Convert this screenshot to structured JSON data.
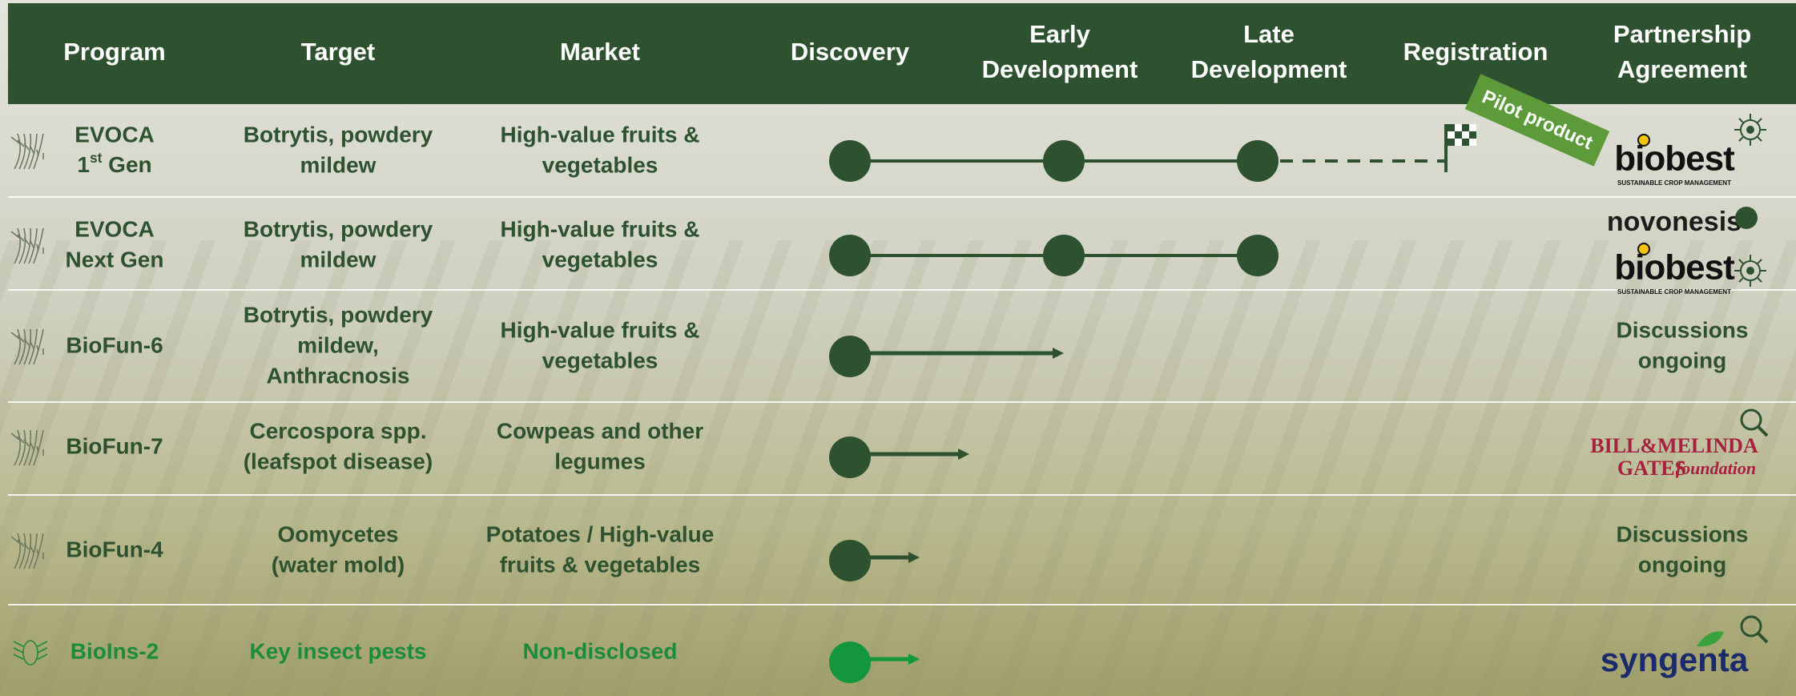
{
  "header": {
    "columns": [
      [
        "Program"
      ],
      [
        "Target"
      ],
      [
        "Market"
      ],
      [
        "Discovery"
      ],
      [
        "Early",
        "Development"
      ],
      [
        "Late",
        "Development"
      ],
      [
        "Registration"
      ],
      [
        "Partnership",
        "Agreement"
      ]
    ]
  },
  "pilot_tag": "Pilot product",
  "rows": [
    {
      "program": [
        "EVOCA",
        {
          "base": "1",
          "sup": "st",
          "rest": " Gen"
        }
      ],
      "target": [
        "Botrytis, powdery",
        "mildew"
      ],
      "market": [
        "High-value fruits &",
        "vegetables"
      ],
      "partnership": {
        "logos": [
          {
            "kind": "biobest",
            "texts": [
              "biobest",
              "SUSTAINABLE CROP MANAGEMENT"
            ]
          }
        ]
      }
    },
    {
      "program": [
        "EVOCA",
        "Next Gen"
      ],
      "target": [
        "Botrytis, powdery",
        "mildew"
      ],
      "market": [
        "High-value fruits &",
        "vegetables"
      ],
      "partnership": {
        "logos": [
          {
            "kind": "novonesis",
            "texts": [
              "novonesis"
            ]
          },
          {
            "kind": "biobest",
            "texts": [
              "biobest",
              "SUSTAINABLE CROP MANAGEMENT"
            ]
          }
        ]
      }
    },
    {
      "program": [
        "BioFun-6"
      ],
      "target": [
        "Botrytis, powdery",
        "mildew,",
        "Anthracnosis"
      ],
      "market": [
        "High-value fruits &",
        "vegetables"
      ],
      "partnership": {
        "lines": [
          "Discussions",
          "ongoing"
        ]
      }
    },
    {
      "program": [
        "BioFun-7"
      ],
      "target": [
        "Cercospora spp.",
        "(leafspot disease)"
      ],
      "market": [
        "Cowpeas and other",
        "legumes"
      ],
      "partnership": {
        "logos": [
          {
            "kind": "gates",
            "texts": [
              "BILL&MELINDA",
              "GATES",
              "foundation"
            ]
          }
        ]
      }
    },
    {
      "program": [
        "BioFun-4"
      ],
      "target": [
        "Oomycetes",
        "(water mold)"
      ],
      "market": [
        "Potatoes / High-value",
        "fruits & vegetables"
      ],
      "partnership": {
        "lines": [
          "Discussions",
          "ongoing"
        ]
      }
    },
    {
      "program": [
        "BioIns-2"
      ],
      "target": [
        "Key insect pests"
      ],
      "market": [
        "Non-disclosed"
      ],
      "partnership": {
        "logos": [
          {
            "kind": "syngenta",
            "texts": [
              "syngenta"
            ]
          }
        ]
      }
    }
  ]
}
